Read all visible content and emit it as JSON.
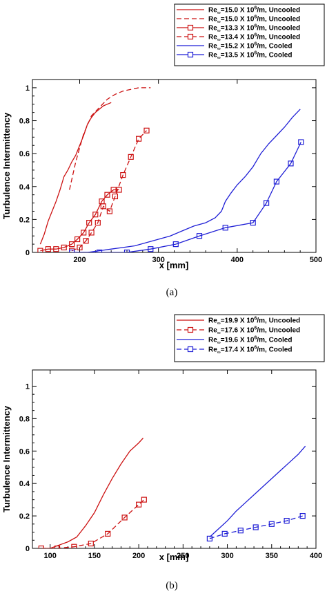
{
  "chart_data": [
    {
      "type": "line",
      "caption": "(a)",
      "xlabel": "x [mm]",
      "ylabel": "Turbulence Intermittency",
      "xlim": [
        140,
        500
      ],
      "ylim": [
        0,
        1.05
      ],
      "xticks": [
        200,
        300,
        400,
        500
      ],
      "yticks": [
        0,
        0.2,
        0.4,
        0.6,
        0.8,
        1
      ],
      "ytick_labels": [
        "0",
        "0.2",
        "0.4",
        "0.6",
        "0.8",
        "1"
      ],
      "grid": false,
      "legend_position": "top-right, above plot",
      "series": [
        {
          "legend": {
            "pre": "Re",
            "sub": "∞",
            "mid": "=15.0 X 10",
            "sup": "6",
            "post": "/m, Uncooled"
          },
          "color": "#cc1111",
          "dash": "solid",
          "marker": "none",
          "x": [
            150,
            155,
            160,
            165,
            170,
            175,
            180,
            185,
            190,
            195,
            200,
            205,
            210,
            215,
            220,
            225,
            230,
            235,
            240
          ],
          "y": [
            0.05,
            0.11,
            0.19,
            0.25,
            0.31,
            0.38,
            0.46,
            0.5,
            0.55,
            0.59,
            0.65,
            0.71,
            0.78,
            0.82,
            0.85,
            0.87,
            0.89,
            0.9,
            0.91
          ]
        },
        {
          "legend": {
            "pre": "Re",
            "sub": "∞",
            "mid": "=15.0 X 10",
            "sup": "6",
            "post": "/m, Uncooled"
          },
          "color": "#cc1111",
          "dash": "dashed",
          "marker": "none",
          "x": [
            187,
            195,
            205,
            215,
            225,
            235,
            245,
            255,
            265,
            275,
            285,
            290
          ],
          "y": [
            0.38,
            0.55,
            0.72,
            0.83,
            0.88,
            0.93,
            0.96,
            0.98,
            0.99,
            1.0,
            1.0,
            1.0
          ]
        },
        {
          "legend": {
            "pre": "Re",
            "sub": "∞",
            "mid": "=13.3 X 10",
            "sup": "6",
            "post": "/m, Uncooled"
          },
          "color": "#cc1111",
          "dash": "solid",
          "marker": "square",
          "x": [
            150,
            160,
            170,
            180,
            190,
            197,
            205,
            212,
            220,
            228,
            235,
            243,
            250
          ],
          "y": [
            0.01,
            0.02,
            0.02,
            0.03,
            0.05,
            0.08,
            0.12,
            0.18,
            0.23,
            0.31,
            0.35,
            0.38,
            0.38
          ]
        },
        {
          "legend": {
            "pre": "Re",
            "sub": "∞",
            "mid": "=13.4 X 10",
            "sup": "6",
            "post": "/m, Uncooled"
          },
          "color": "#cc1111",
          "dash": "dashed",
          "marker": "square",
          "x": [
            190,
            200,
            208,
            215,
            223,
            230,
            238,
            245,
            255,
            265,
            275,
            285
          ],
          "y": [
            0.01,
            0.03,
            0.07,
            0.12,
            0.18,
            0.28,
            0.25,
            0.34,
            0.47,
            0.58,
            0.69,
            0.74
          ]
        },
        {
          "legend": {
            "pre": "Re",
            "sub": "∞",
            "mid": "=15.2 X 10",
            "sup": "6",
            "post": "/m, Cooled"
          },
          "color": "#1f1fd6",
          "dash": "solid",
          "marker": "none",
          "x": [
            195,
            210,
            225,
            240,
            255,
            270,
            285,
            300,
            315,
            330,
            345,
            360,
            372,
            380,
            385,
            392,
            400,
            410,
            420,
            430,
            440,
            450,
            460,
            470,
            480
          ],
          "y": [
            0.0,
            0.0,
            0.01,
            0.02,
            0.03,
            0.04,
            0.06,
            0.08,
            0.1,
            0.13,
            0.16,
            0.18,
            0.21,
            0.25,
            0.31,
            0.36,
            0.41,
            0.46,
            0.52,
            0.6,
            0.66,
            0.71,
            0.76,
            0.82,
            0.87
          ]
        },
        {
          "legend": {
            "pre": "Re",
            "sub": "∞",
            "mid": "=13.5 X 10",
            "sup": "6",
            "post": "/m, Cooled"
          },
          "color": "#1f1fd6",
          "dash": "solid",
          "marker": "square",
          "x": [
            190,
            225,
            260,
            290,
            322,
            352,
            385,
            420,
            437,
            450,
            468,
            481
          ],
          "y": [
            0.0,
            0.0,
            0.0,
            0.02,
            0.05,
            0.1,
            0.15,
            0.18,
            0.3,
            0.43,
            0.54,
            0.67
          ]
        }
      ]
    },
    {
      "type": "line",
      "caption": "(b)",
      "xlabel": "x [mm]",
      "ylabel": "Turbulence Intermittency",
      "xlim": [
        80,
        400
      ],
      "ylim": [
        0,
        1.1
      ],
      "xticks": [
        100,
        150,
        200,
        250,
        300,
        350,
        400
      ],
      "yticks": [
        0,
        0.2,
        0.4,
        0.6,
        0.8,
        1
      ],
      "ytick_labels": [
        "0",
        "0.2",
        "0.4",
        "0.6",
        "0.8",
        "1"
      ],
      "grid": false,
      "legend_position": "top-right, above plot",
      "series": [
        {
          "legend": {
            "pre": "Re",
            "sub": "∞",
            "mid": "=19.9 X 10",
            "sup": "6",
            "post": "/m, Uncooled"
          },
          "color": "#cc1111",
          "dash": "solid",
          "marker": "none",
          "x": [
            90,
            100,
            110,
            120,
            130,
            140,
            150,
            160,
            170,
            180,
            190,
            200,
            205
          ],
          "y": [
            0.0,
            0.0,
            0.02,
            0.04,
            0.07,
            0.14,
            0.22,
            0.33,
            0.43,
            0.52,
            0.6,
            0.65,
            0.68
          ]
        },
        {
          "legend": {
            "pre": "Re",
            "sub": "∞",
            "mid": "=17.6 X 10",
            "sup": "6",
            "post": "/m, Uncooled"
          },
          "color": "#cc1111",
          "dash": "dashed",
          "marker": "square",
          "x": [
            90,
            108,
            127,
            146,
            165,
            184,
            200,
            206
          ],
          "y": [
            0.0,
            0.0,
            0.01,
            0.03,
            0.09,
            0.19,
            0.27,
            0.3
          ]
        },
        {
          "legend": {
            "pre": "Re",
            "sub": "∞",
            "mid": "=19.6 X 10",
            "sup": "6",
            "post": "/m, Cooled"
          },
          "color": "#1f1fd6",
          "dash": "solid",
          "marker": "none",
          "x": [
            280,
            290,
            300,
            310,
            320,
            330,
            340,
            350,
            360,
            370,
            380,
            388
          ],
          "y": [
            0.07,
            0.12,
            0.17,
            0.23,
            0.28,
            0.33,
            0.38,
            0.43,
            0.48,
            0.53,
            0.58,
            0.63
          ]
        },
        {
          "legend": {
            "pre": "Re",
            "sub": "∞",
            "mid": "=17.4 X 10",
            "sup": "6",
            "post": "/m, Cooled"
          },
          "color": "#1f1fd6",
          "dash": "dashed",
          "marker": "square",
          "x": [
            280,
            297,
            315,
            332,
            350,
            367,
            385
          ],
          "y": [
            0.06,
            0.09,
            0.11,
            0.13,
            0.15,
            0.17,
            0.2
          ]
        }
      ]
    }
  ]
}
